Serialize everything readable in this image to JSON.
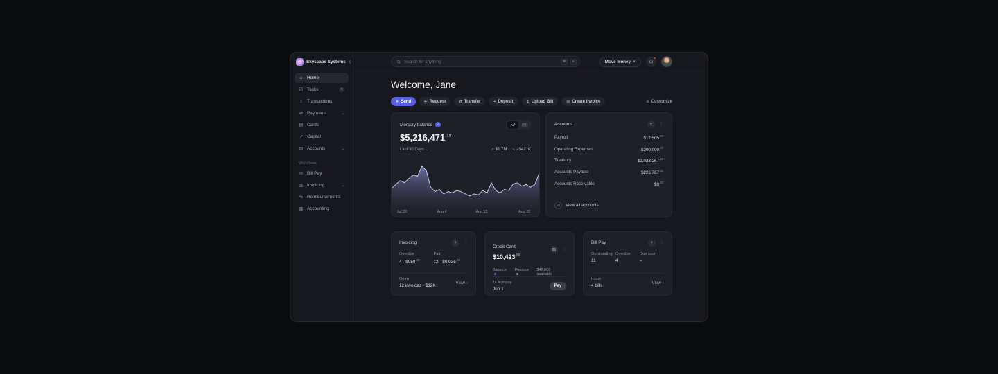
{
  "app": {
    "name": "Skyscape Systems"
  },
  "topbar": {
    "search_placeholder": "Search for anything",
    "key_1": "⌘",
    "key_2": "K",
    "move_money_label": "Move Money",
    "move_money_chevron": "∨"
  },
  "sidebar": {
    "main": [
      {
        "label": "Home",
        "glyph": "⌂"
      },
      {
        "label": "Tasks",
        "glyph": "☑",
        "badge": "6"
      },
      {
        "label": "Transactions",
        "glyph": "≡"
      },
      {
        "label": "Payments",
        "glyph": "⇄",
        "chevron": "⌄"
      },
      {
        "label": "Cards",
        "glyph": "▤"
      },
      {
        "label": "Capital",
        "glyph": "↗"
      },
      {
        "label": "Accounts",
        "glyph": "⊞",
        "chevron": "⌄"
      }
    ],
    "section_label": "Workflows",
    "workflows": [
      {
        "label": "Bill Pay",
        "glyph": "✉"
      },
      {
        "label": "Invoicing",
        "glyph": "▥",
        "chevron": "⌄"
      },
      {
        "label": "Reimbursements",
        "glyph": "⇆"
      },
      {
        "label": "Accounting",
        "glyph": "▦"
      }
    ],
    "collapse_glyph": "❬"
  },
  "header": {
    "greeting": "Welcome, Jane"
  },
  "actions": {
    "pills": [
      {
        "label": "Send",
        "glyph": "➤"
      },
      {
        "label": "Request",
        "glyph": "⇤"
      },
      {
        "label": "Transfer",
        "glyph": "⇄"
      },
      {
        "label": "Deposit",
        "glyph": "+"
      },
      {
        "label": "Upload Bill",
        "glyph": "↥"
      },
      {
        "label": "Create Invoice",
        "glyph": "▤"
      }
    ],
    "customize_label": "Customize",
    "customize_glyph": "⚙"
  },
  "balance_card": {
    "title": "Mercury balance",
    "verified_glyph": "✓",
    "amount": "$5,216,471",
    "cents": ".18",
    "range_label": "Last 30 Days",
    "range_chevron": "⌄",
    "inflow_arrow": "↗",
    "inflow": "$1.7M",
    "outflow_arrow": "↘",
    "outflow": "−$421K",
    "x_labels": [
      "Jul 26",
      "Aug 4",
      "Aug 13",
      "Aug 22"
    ]
  },
  "chart_data": {
    "type": "area",
    "title": "Mercury balance — Last 30 Days",
    "x_labels": [
      "Jul 26",
      "Aug 4",
      "Aug 13",
      "Aug 22"
    ],
    "series": [
      {
        "name": "Balance",
        "values": [
          48,
          55,
          62,
          58,
          66,
          72,
          70,
          88,
          80,
          50,
          42,
          46,
          38,
          42,
          40,
          44,
          42,
          38,
          34,
          38,
          36,
          44,
          40,
          58,
          44,
          40,
          46,
          44,
          56,
          58,
          52,
          55,
          50,
          55,
          75
        ]
      }
    ],
    "line_color": "#c9cce8",
    "fill_top": "#777eb9",
    "fill_bottom": "#23242c",
    "grid": false,
    "legend": false
  },
  "accounts_card": {
    "title": "Accounts",
    "plus_glyph": "+",
    "kebab_glyph": "⋮",
    "rows": [
      {
        "name": "Payroll",
        "amount": "$12,505",
        "cents": ".87"
      },
      {
        "name": "Operating Expenses",
        "amount": "$200,000",
        "cents": ".00"
      },
      {
        "name": "Treasury",
        "amount": "$2,023,267",
        "cents": ".12"
      },
      {
        "name": "Accounts Payable",
        "amount": "$226,767",
        "cents": ".32"
      },
      {
        "name": "Accounts Receivable",
        "amount": "$0",
        "cents": ".00"
      }
    ],
    "more_badge": "+2",
    "view_all_label": "View all accounts"
  },
  "invoicing_card": {
    "title": "Invoicing",
    "plus_glyph": "+",
    "kebab_glyph": "⋮",
    "overdue_label": "Overdue",
    "overdue_value": "4 · $950",
    "overdue_cents": ".00",
    "paid_label": "Paid",
    "paid_value": "12 · $6,035",
    "paid_cents": ".00",
    "open_label": "Open",
    "open_value": "12 invoices · $12K",
    "view_label": "View",
    "view_chevron": "›"
  },
  "credit_card": {
    "title": "Credit Card",
    "card_glyph": "▤",
    "kebab_glyph": "⋮",
    "amount": "$10,423",
    "cents": ".00",
    "balance_label": "Balance",
    "pending_label": "Pending",
    "available": "$40,000 available",
    "balance_pct": 58,
    "pending_pct": 14,
    "autopay_glyph": "↻",
    "autopay_label": "Autopay",
    "autopay_date": "Jun 1",
    "pay_label": "Pay"
  },
  "billpay_card": {
    "title": "Bill Pay",
    "plus_glyph": "+",
    "kebab_glyph": "⋮",
    "stats": [
      {
        "label": "Outstanding",
        "value": "11"
      },
      {
        "label": "Overdue",
        "value": "4"
      },
      {
        "label": "Due soon",
        "value": "–"
      }
    ],
    "inbox_label": "Inbox",
    "inbox_value": "4 bills",
    "view_label": "View",
    "view_chevron": "›"
  },
  "colors": {
    "accent": "#5a5fe0",
    "positive": "#55c07d",
    "negative": "#d96470",
    "progress_balance": "#5a62e0",
    "progress_pending": "#8f96c4",
    "progress_available": "#caccd3",
    "notification_dot": "#e5484d",
    "card_bg": "#1e2027",
    "window_bg": "#17181d"
  }
}
